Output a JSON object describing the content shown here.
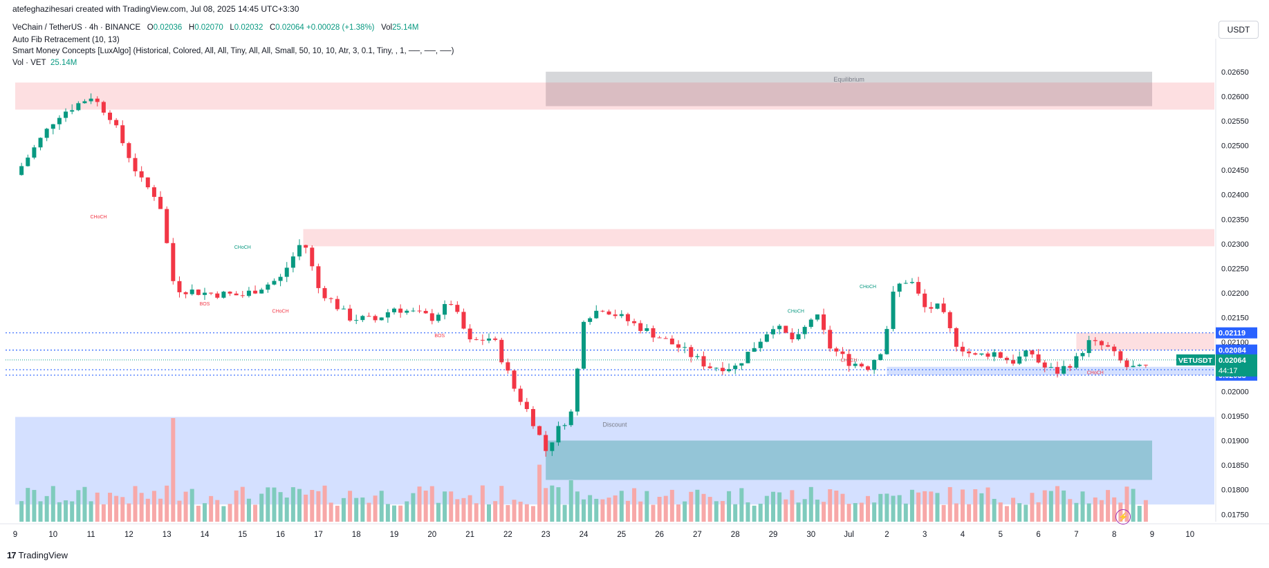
{
  "header": {
    "watermark": "atefeghazihesari created with TradingView.com, Jul 08, 2025 14:45 UTC+3:30",
    "symbol": "VeChain / TetherUS · 4h · BINANCE",
    "o_label": "O",
    "o_value": "0.02036",
    "h_label": "H",
    "h_value": "0.02070",
    "l_label": "L",
    "l_value": "0.02032",
    "c_label": "C",
    "c_value": "0.02064",
    "change": "+0.00028 (+1.38%)",
    "vol_label": "Vol",
    "vol_value": "25.14M",
    "indicator1": "Auto Fib Retracement (10, 13)",
    "indicator2": "Smart Money Concepts [LuxAlgo] (Historical, Colored, All, All, Tiny, All, All, Small, 50, 10, 10, Atr, 3, 0.1, Tiny, , 1, ──, ──, ──)",
    "vol_indicator": "Vol · VET",
    "vol_indicator_value": "25.14M"
  },
  "currency": "USDT",
  "footer": {
    "brand": "TradingView",
    "logo": "17"
  },
  "colors": {
    "up": "#089981",
    "down": "#f23645",
    "up_vol": "#7fcbbd",
    "down_vol": "#f7a8a8",
    "blue": "#2962ff",
    "accent_badge": "#089981"
  },
  "chart_data": {
    "type": "candlestick",
    "symbol": "VETUSDT",
    "timeframe": "4h",
    "x_ticks": [
      "9",
      "10",
      "11",
      "12",
      "13",
      "14",
      "15",
      "16",
      "17",
      "18",
      "19",
      "20",
      "21",
      "22",
      "23",
      "24",
      "25",
      "26",
      "27",
      "28",
      "29",
      "30",
      "Jul",
      "2",
      "3",
      "4",
      "5",
      "6",
      "7",
      "8",
      "9",
      "10"
    ],
    "y_ticks": [
      "0.02650",
      "0.02600",
      "0.02550",
      "0.02500",
      "0.02450",
      "0.02400",
      "0.02350",
      "0.02300",
      "0.02250",
      "0.02200",
      "0.02150",
      "0.02100",
      "0.02050",
      "0.02000",
      "0.01950",
      "0.01900",
      "0.01850",
      "0.01800",
      "0.01750"
    ],
    "ylim": [
      0.01735,
      0.02675
    ],
    "anchors": [
      {
        "d": 0,
        "v": 0.0244
      },
      {
        "d": 1.1,
        "v": 0.0256
      },
      {
        "d": 2.0,
        "v": 0.026
      },
      {
        "d": 2.5,
        "v": 0.0256
      },
      {
        "d": 3.3,
        "v": 0.0243
      },
      {
        "d": 3.8,
        "v": 0.0239
      },
      {
        "d": 4.2,
        "v": 0.0221
      },
      {
        "d": 5.0,
        "v": 0.022
      },
      {
        "d": 6.0,
        "v": 0.02195
      },
      {
        "d": 7.0,
        "v": 0.0223
      },
      {
        "d": 7.6,
        "v": 0.0231
      },
      {
        "d": 8.0,
        "v": 0.0221
      },
      {
        "d": 8.8,
        "v": 0.0215
      },
      {
        "d": 9.5,
        "v": 0.02145
      },
      {
        "d": 10.0,
        "v": 0.0217
      },
      {
        "d": 11.0,
        "v": 0.0215
      },
      {
        "d": 11.5,
        "v": 0.0218
      },
      {
        "d": 12.0,
        "v": 0.021
      },
      {
        "d": 12.6,
        "v": 0.0211
      },
      {
        "d": 13.2,
        "v": 0.02
      },
      {
        "d": 13.6,
        "v": 0.0195
      },
      {
        "d": 14.0,
        "v": 0.0188
      },
      {
        "d": 14.3,
        "v": 0.0192
      },
      {
        "d": 14.7,
        "v": 0.0196
      },
      {
        "d": 15.0,
        "v": 0.0215
      },
      {
        "d": 15.5,
        "v": 0.0217
      },
      {
        "d": 16.5,
        "v": 0.0213
      },
      {
        "d": 17.5,
        "v": 0.0209
      },
      {
        "d": 18.3,
        "v": 0.0205
      },
      {
        "d": 19.0,
        "v": 0.0205
      },
      {
        "d": 19.6,
        "v": 0.021
      },
      {
        "d": 20.0,
        "v": 0.02135
      },
      {
        "d": 20.6,
        "v": 0.021
      },
      {
        "d": 21.1,
        "v": 0.0216
      },
      {
        "d": 21.5,
        "v": 0.0209
      },
      {
        "d": 22.0,
        "v": 0.0206
      },
      {
        "d": 22.5,
        "v": 0.0205
      },
      {
        "d": 22.9,
        "v": 0.0209
      },
      {
        "d": 23.2,
        "v": 0.0221
      },
      {
        "d": 23.6,
        "v": 0.0223
      },
      {
        "d": 24.0,
        "v": 0.0217
      },
      {
        "d": 24.4,
        "v": 0.0217
      },
      {
        "d": 24.8,
        "v": 0.021
      },
      {
        "d": 25.3,
        "v": 0.0207
      },
      {
        "d": 25.8,
        "v": 0.0208
      },
      {
        "d": 26.3,
        "v": 0.0206
      },
      {
        "d": 26.8,
        "v": 0.0208
      },
      {
        "d": 27.1,
        "v": 0.0205
      },
      {
        "d": 27.5,
        "v": 0.0204
      },
      {
        "d": 28.0,
        "v": 0.02065
      },
      {
        "d": 28.3,
        "v": 0.021
      },
      {
        "d": 28.8,
        "v": 0.0209
      },
      {
        "d": 29.3,
        "v": 0.0205
      },
      {
        "d": 29.8,
        "v": 0.02044
      },
      {
        "d": 29.95,
        "v": 0.02064
      }
    ],
    "volume_max": 1.0,
    "volume_spikes": [
      {
        "d": 4.2,
        "v": 1.0
      },
      {
        "d": 13.9,
        "v": 0.55
      },
      {
        "d": 14.6,
        "v": 0.4
      },
      {
        "d": 12.3,
        "v": 0.35
      },
      {
        "d": 10.8,
        "v": 0.3
      }
    ],
    "zones": [
      {
        "label": "Equilibrium",
        "d0": 14.0,
        "d1": 30.0,
        "v0": 0.0258,
        "v1": 0.0265,
        "kind": "gray"
      },
      {
        "label": "",
        "d0": 0,
        "d1": 32.4,
        "v0": 0.02573,
        "v1": 0.02628,
        "kind": "pink"
      },
      {
        "label": "",
        "d0": 7.6,
        "d1": 32.4,
        "v0": 0.02295,
        "v1": 0.0233,
        "kind": "pink"
      },
      {
        "label": "",
        "d0": 28.0,
        "d1": 32.4,
        "v0": 0.02084,
        "v1": 0.02119,
        "kind": "pink"
      },
      {
        "label": "",
        "d0": 23.0,
        "d1": 32.4,
        "v0": 0.02033,
        "v1": 0.0205,
        "kind": "blue"
      },
      {
        "label": "Discount",
        "d0": 0,
        "d1": 32.4,
        "v0": 0.0177,
        "v1": 0.01948,
        "kind": "blue"
      },
      {
        "label": "",
        "d0": 14.0,
        "d1": 30.0,
        "v0": 0.0182,
        "v1": 0.019,
        "kind": "teal"
      }
    ],
    "structure_labels": [
      {
        "text": "CHoCH",
        "d": 2.2,
        "v": 0.02352,
        "color": "#f23645"
      },
      {
        "text": "CHoCH",
        "d": 6.0,
        "v": 0.0229,
        "color": "#089981"
      },
      {
        "text": "BOS",
        "d": 5.0,
        "v": 0.02175,
        "color": "#f23645"
      },
      {
        "text": "CHoCH",
        "d": 7.0,
        "v": 0.0216,
        "color": "#f23645"
      },
      {
        "text": "BOS",
        "d": 11.2,
        "v": 0.0211,
        "color": "#f23645"
      },
      {
        "text": "CHoCH",
        "d": 20.6,
        "v": 0.0216,
        "color": "#089981"
      },
      {
        "text": "CHoCH",
        "d": 22.5,
        "v": 0.0221,
        "color": "#089981"
      },
      {
        "text": "CHoCH",
        "d": 22.0,
        "v": 0.0206,
        "color": "#f23645"
      },
      {
        "text": "CHoCH",
        "d": 28.5,
        "v": 0.02035,
        "color": "#f23645"
      }
    ],
    "price_labels": [
      {
        "text": "0.02119",
        "v": 0.02119,
        "color": "#2962ff"
      },
      {
        "text": "0.02084",
        "v": 0.02084,
        "color": "#2962ff"
      },
      {
        "text": "0.02044",
        "v": 0.02044,
        "color": "#2962ff"
      },
      {
        "text": "0.02033",
        "v": 0.02033,
        "color": "#2962ff"
      }
    ],
    "last_price": {
      "symbol": "VETUSDT",
      "value": "0.02064",
      "countdown": "44:17",
      "v": 0.02064
    }
  }
}
